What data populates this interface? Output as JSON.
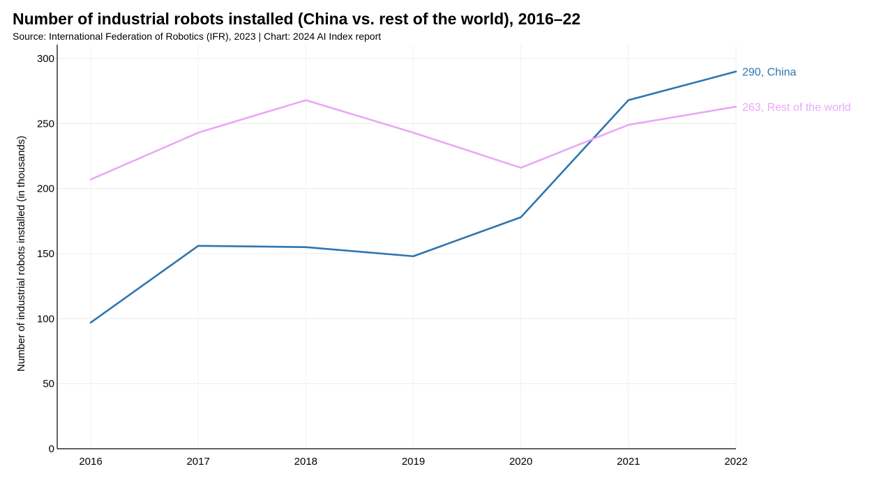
{
  "title": "Number of industrial robots installed (China vs. rest of the world), 2016–22",
  "subtitle": "Source: International Federation of Robotics (IFR), 2023 | Chart: 2024 AI Index report",
  "chart_data": {
    "type": "line",
    "title": "Number of industrial robots installed (China vs. rest of the world), 2016–22",
    "subtitle": "Source: International Federation of Robotics (IFR), 2023 | Chart: 2024 AI Index report",
    "xlabel": "",
    "ylabel": "Number of industrial robots installed (in thousands)",
    "x": [
      "2016",
      "2017",
      "2018",
      "2019",
      "2020",
      "2021",
      "2022"
    ],
    "ylim": [
      0,
      300
    ],
    "yticks": [
      "0",
      "50",
      "100",
      "150",
      "200",
      "250",
      "300"
    ],
    "grid": true,
    "legend": "end-of-line labels",
    "series": [
      {
        "name": "China",
        "color": "#2e75b0",
        "values": [
          97,
          156,
          155,
          148,
          178,
          268,
          290
        ],
        "end_label": "290, China"
      },
      {
        "name": "Rest of the world",
        "color": "#e8a8f5",
        "values": [
          207,
          243,
          268,
          243,
          216,
          249,
          263
        ],
        "end_label": "263, Rest of the world"
      }
    ]
  }
}
